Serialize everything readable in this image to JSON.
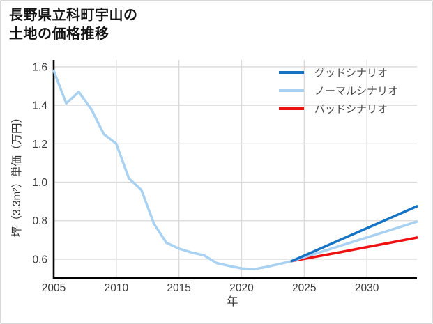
{
  "title": {
    "line1": "長野県立科町宇山の",
    "line2": "土地の価格推移"
  },
  "chart_data": {
    "type": "line",
    "title": "長野県立科町宇山の土地の価格推移",
    "xlabel": "年",
    "ylabel": "坪（3.3m²）単価（万円）",
    "xlim": [
      2005,
      2034
    ],
    "ylim": [
      0.502,
      1.636
    ],
    "x_ticks": [
      2005,
      2010,
      2015,
      2020,
      2025,
      2030
    ],
    "y_ticks": [
      0.6,
      0.8,
      1.0,
      1.2,
      1.4,
      1.6
    ],
    "grid": true,
    "legend_position": "top-right",
    "legend": [
      {
        "label": "グッドシナリオ",
        "color": "#1473c4"
      },
      {
        "label": "ノーマルシナリオ",
        "color": "#a8d1f2"
      },
      {
        "label": "バッドシナリオ",
        "color": "#ee1111"
      }
    ],
    "series": [
      {
        "id": "historical",
        "label": null,
        "color": "#a8d1f2",
        "x": [
          2005,
          2006,
          2007,
          2008,
          2009,
          2010,
          2011,
          2012,
          2013,
          2014,
          2015,
          2016,
          2017,
          2018,
          2019,
          2020,
          2021,
          2022,
          2023,
          2024
        ],
        "values": [
          1.58,
          1.41,
          1.47,
          1.38,
          1.25,
          1.2,
          1.02,
          0.96,
          0.785,
          0.685,
          0.655,
          0.635,
          0.62,
          0.58,
          0.565,
          0.552,
          0.548,
          0.56,
          0.575,
          0.59
        ]
      },
      {
        "id": "bad-scenario",
        "label": "バッドシナリオ",
        "color": "#ee1111",
        "x": [
          2024,
          2026,
          2028,
          2030,
          2032,
          2034
        ],
        "values": [
          0.59,
          0.614,
          0.638,
          0.663,
          0.687,
          0.712
        ]
      },
      {
        "id": "normal-scenario",
        "label": "ノーマルシナリオ",
        "color": "#a8d1f2",
        "x": [
          2024,
          2026,
          2028,
          2030,
          2032,
          2034
        ],
        "values": [
          0.59,
          0.631,
          0.672,
          0.713,
          0.754,
          0.795
        ]
      },
      {
        "id": "good-scenario",
        "label": "グッドシナリオ",
        "color": "#1473c4",
        "x": [
          2024,
          2026,
          2028,
          2030,
          2032,
          2034
        ],
        "values": [
          0.59,
          0.647,
          0.704,
          0.761,
          0.818,
          0.875
        ]
      }
    ],
    "colors": {
      "axis": "#000000",
      "grid": "#d9d9d9",
      "tick_text": "#3a3a3a",
      "axis_label_text": "#333333",
      "legend_text": "#4a4a4a"
    }
  }
}
